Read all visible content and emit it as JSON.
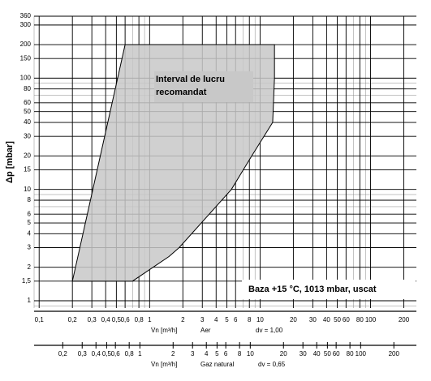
{
  "chart_data": {
    "type": "region",
    "y_label": "Δp [mbar]",
    "annotation": [
      "Interval de lucru",
      "recomandat"
    ],
    "note": "Baza  +15 °C, 1013 mbar, uscat",
    "log_x": true,
    "log_y": true,
    "grid": true,
    "minor_grid": true,
    "color": "#c8c8c8",
    "xlim": [
      0.09,
      260
    ],
    "ylim": [
      0.86,
      360
    ],
    "yticks": [
      1,
      {
        "value": 1.5,
        "label": "1,5"
      },
      2,
      3,
      4,
      5,
      6,
      8,
      10,
      15,
      20,
      30,
      40,
      50,
      60,
      80,
      100,
      150,
      200,
      300,
      360
    ],
    "xticks": [
      {
        "value": 0.1,
        "label": "0,1"
      },
      {
        "value": 0.2,
        "label": "0,2"
      },
      {
        "value": 0.3,
        "label": "0,3"
      },
      {
        "value": 0.4,
        "label": "0,4"
      },
      {
        "value": 0.5,
        "label": "0,5"
      },
      {
        "value": 0.6,
        "label": "0,6"
      },
      {
        "value": 0.8,
        "label": "0,8"
      },
      1,
      2,
      3,
      4,
      5,
      6,
      8,
      10,
      20,
      30,
      40,
      50,
      60,
      80,
      100,
      200
    ],
    "x_label": [
      "V̇n [m³/h]",
      "Aer",
      "dv = 1,00"
    ],
    "x2lim": [
      0.11,
      320
    ],
    "x2ticks": [
      {
        "value": 0.2,
        "label": "0,2"
      },
      {
        "value": 0.3,
        "label": "0,3"
      },
      {
        "value": 0.4,
        "label": "0,4"
      },
      {
        "value": 0.5,
        "label": "0,5"
      },
      {
        "value": 0.6,
        "label": "0,6"
      },
      {
        "value": 0.8,
        "label": "0,8"
      },
      1,
      2,
      3,
      4,
      5,
      6,
      8,
      10,
      20,
      30,
      40,
      50,
      60,
      80,
      100,
      200
    ],
    "x2_label": [
      "V̇n [m³/h]",
      "Gaz natural",
      "dv = 0,65"
    ],
    "region": {
      "x": [
        0.2,
        0.6,
        13.5,
        13.5,
        13,
        8.4,
        5.5,
        1.85,
        1.5,
        0.7
      ],
      "y": [
        1.5,
        200,
        200,
        100,
        40,
        20,
        10,
        3,
        2.5,
        1.5
      ]
    }
  }
}
